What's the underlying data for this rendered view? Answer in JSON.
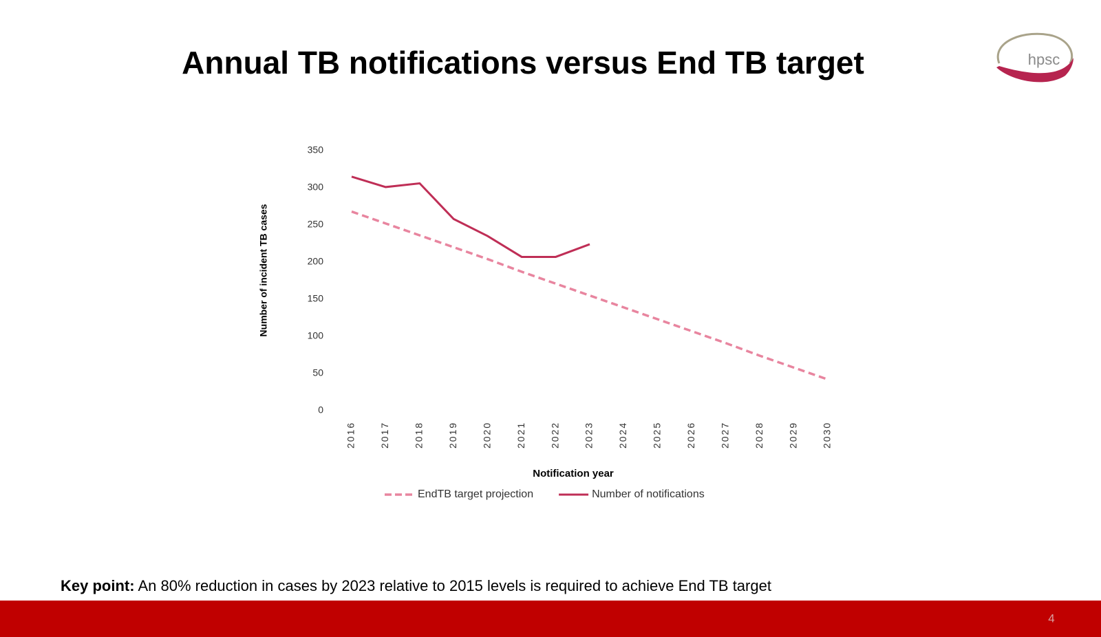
{
  "chart_data": {
    "type": "line",
    "title": "Annual TB notifications versus End TB target",
    "x_label": "Notification year",
    "y_label": "Number of incident TB cases",
    "categories": [
      "2016",
      "2017",
      "2018",
      "2019",
      "2020",
      "2021",
      "2022",
      "2023",
      "2024",
      "2025",
      "2026",
      "2027",
      "2028",
      "2029",
      "2030"
    ],
    "series": [
      {
        "name": "EndTB target projection",
        "color": "#e8859f",
        "line_style": "dashed",
        "values": [
          268,
          252,
          236,
          220,
          204,
          187,
          171,
          155,
          139,
          123,
          107,
          91,
          74,
          58,
          42
        ]
      },
      {
        "name": "Number of notifications",
        "color": "#bf2e56",
        "line_style": "solid",
        "values": [
          315,
          301,
          306,
          258,
          235,
          207,
          207,
          224,
          null,
          null,
          null,
          null,
          null,
          null,
          null
        ]
      }
    ],
    "ylim": [
      0,
      350
    ],
    "yticks": [
      0,
      50,
      100,
      150,
      200,
      250,
      300,
      350
    ],
    "grid": false,
    "legend": "bottom"
  },
  "footer": {
    "key_label": "Key point:",
    "key_text": "An 80% reduction in cases by 2023 relative to 2015 levels is required to achieve End TB target",
    "page_number": "4"
  },
  "logo": {
    "text": "hpsc"
  }
}
